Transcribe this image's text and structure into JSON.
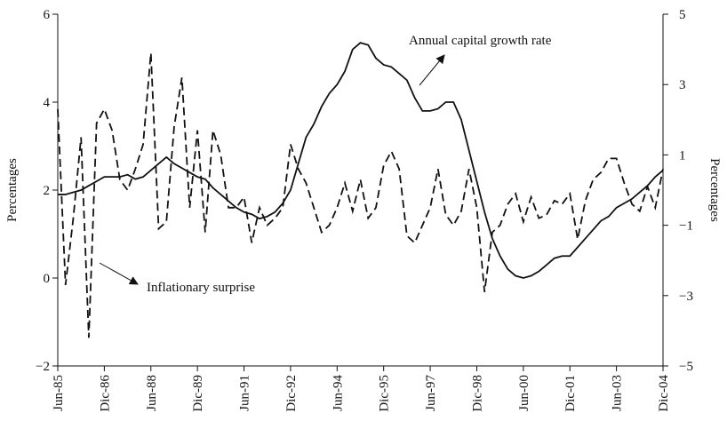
{
  "chart_data": {
    "type": "line",
    "categories": [
      "Jun-85",
      null,
      null,
      null,
      null,
      null,
      "Dic-86",
      null,
      null,
      null,
      null,
      null,
      "Jun-88",
      null,
      null,
      null,
      null,
      null,
      "Dic-89",
      null,
      null,
      null,
      null,
      null,
      "Jun-91",
      null,
      null,
      null,
      null,
      null,
      "Dic-92",
      null,
      null,
      null,
      null,
      null,
      "Jun-94",
      null,
      null,
      null,
      null,
      null,
      "Dic-95",
      null,
      null,
      null,
      null,
      null,
      "Jun-97",
      null,
      null,
      null,
      null,
      null,
      "Dic-98",
      null,
      null,
      null,
      null,
      null,
      "Jun-00",
      null,
      null,
      null,
      null,
      null,
      "Dic-01",
      null,
      null,
      null,
      null,
      null,
      "Jun-03",
      null,
      null,
      null,
      null,
      null,
      "Dic-04"
    ],
    "series": [
      {
        "name": "Annual capital growth rate",
        "color": "#111111",
        "dash": false,
        "axis": "y",
        "values": [
          1.9,
          1.9,
          1.95,
          2.0,
          2.1,
          2.2,
          2.3,
          2.3,
          2.3,
          2.35,
          2.25,
          2.3,
          2.45,
          2.6,
          2.75,
          2.6,
          2.5,
          2.4,
          2.3,
          2.25,
          2.05,
          1.9,
          1.75,
          1.6,
          1.5,
          1.45,
          1.35,
          1.4,
          1.5,
          1.7,
          2.0,
          2.6,
          3.2,
          3.5,
          3.9,
          4.2,
          4.4,
          4.7,
          5.2,
          5.35,
          5.3,
          5.0,
          4.85,
          4.8,
          4.65,
          4.5,
          4.1,
          3.8,
          3.8,
          3.85,
          4.0,
          4.0,
          3.6,
          2.9,
          2.2,
          1.5,
          0.9,
          0.5,
          0.2,
          0.05,
          0.0,
          0.05,
          0.15,
          0.3,
          0.45,
          0.5,
          0.5,
          0.7,
          0.9,
          1.1,
          1.3,
          1.4,
          1.6,
          1.7,
          1.8,
          1.95,
          2.1,
          2.3,
          2.45
        ]
      },
      {
        "name": "Inflationary surprise",
        "color": "#111111",
        "dash": true,
        "axis": "y2",
        "values": [
          2.3,
          -2.7,
          -0.8,
          1.5,
          -4.2,
          1.9,
          2.3,
          1.7,
          0.3,
          0.0,
          0.6,
          1.3,
          3.9,
          -1.1,
          -0.9,
          1.8,
          3.2,
          -0.5,
          1.7,
          -1.2,
          1.7,
          1.0,
          -0.5,
          -0.5,
          -0.2,
          -1.5,
          -0.5,
          -1.0,
          -0.8,
          -0.5,
          1.3,
          0.6,
          0.2,
          -0.5,
          -1.2,
          -1.0,
          -0.5,
          0.2,
          -0.6,
          0.3,
          -0.8,
          -0.5,
          0.7,
          1.1,
          0.6,
          -1.3,
          -1.5,
          -1.0,
          -0.5,
          0.6,
          -0.7,
          -1.0,
          -0.6,
          0.6,
          -0.5,
          -2.9,
          -1.2,
          -1.0,
          -0.4,
          -0.1,
          -0.9,
          -0.2,
          -0.8,
          -0.7,
          -0.3,
          -0.4,
          -0.1,
          -1.4,
          -0.3,
          0.3,
          0.5,
          0.9,
          0.9,
          0.2,
          -0.4,
          -0.6,
          0.1,
          -0.5,
          0.6
        ]
      }
    ],
    "ylabel": "Percentages",
    "y2label": "Percentages",
    "ylim": [
      -2,
      6
    ],
    "yticks": [
      {
        "value": -2,
        "label": "−2"
      },
      0,
      2,
      4,
      6
    ],
    "y2lim": [
      -5,
      5
    ],
    "y2ticks": [
      {
        "value": -5,
        "label": "−5"
      },
      {
        "value": -3,
        "label": "−3"
      },
      {
        "value": -1,
        "label": "−1"
      },
      1,
      3,
      5
    ]
  }
}
